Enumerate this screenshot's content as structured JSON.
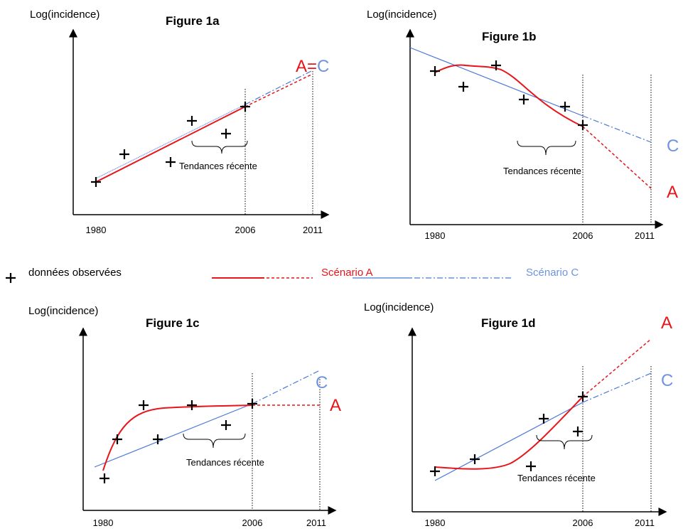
{
  "legend": {
    "observed": "données observées",
    "scenario_a": "Scénario A",
    "scenario_c": "Scénario C"
  },
  "figures": [
    {
      "title": "Figure 1a",
      "y_label": "Log(incidence)",
      "x_labels": [
        "1980",
        "2006",
        "2011"
      ],
      "annotation": "Tendances récente",
      "end_labels": [
        "A",
        "=",
        "C"
      ]
    },
    {
      "title": "Figure 1b",
      "y_label": "Log(incidence)",
      "x_labels": [
        "1980",
        "2006",
        "2011"
      ],
      "annotation": "Tendances récente",
      "end_labels": [
        "C",
        "A"
      ]
    },
    {
      "title": "Figure 1c",
      "y_label": "Log(incidence)",
      "x_labels": [
        "1980",
        "2006",
        "2011"
      ],
      "annotation": "Tendances récente",
      "end_labels": [
        "C",
        "A"
      ]
    },
    {
      "title": "Figure 1d",
      "y_label": "Log(incidence)",
      "x_labels": [
        "1980",
        "2006",
        "2011"
      ],
      "annotation": "Tendances récente",
      "end_labels": [
        "A",
        "C"
      ]
    }
  ]
}
